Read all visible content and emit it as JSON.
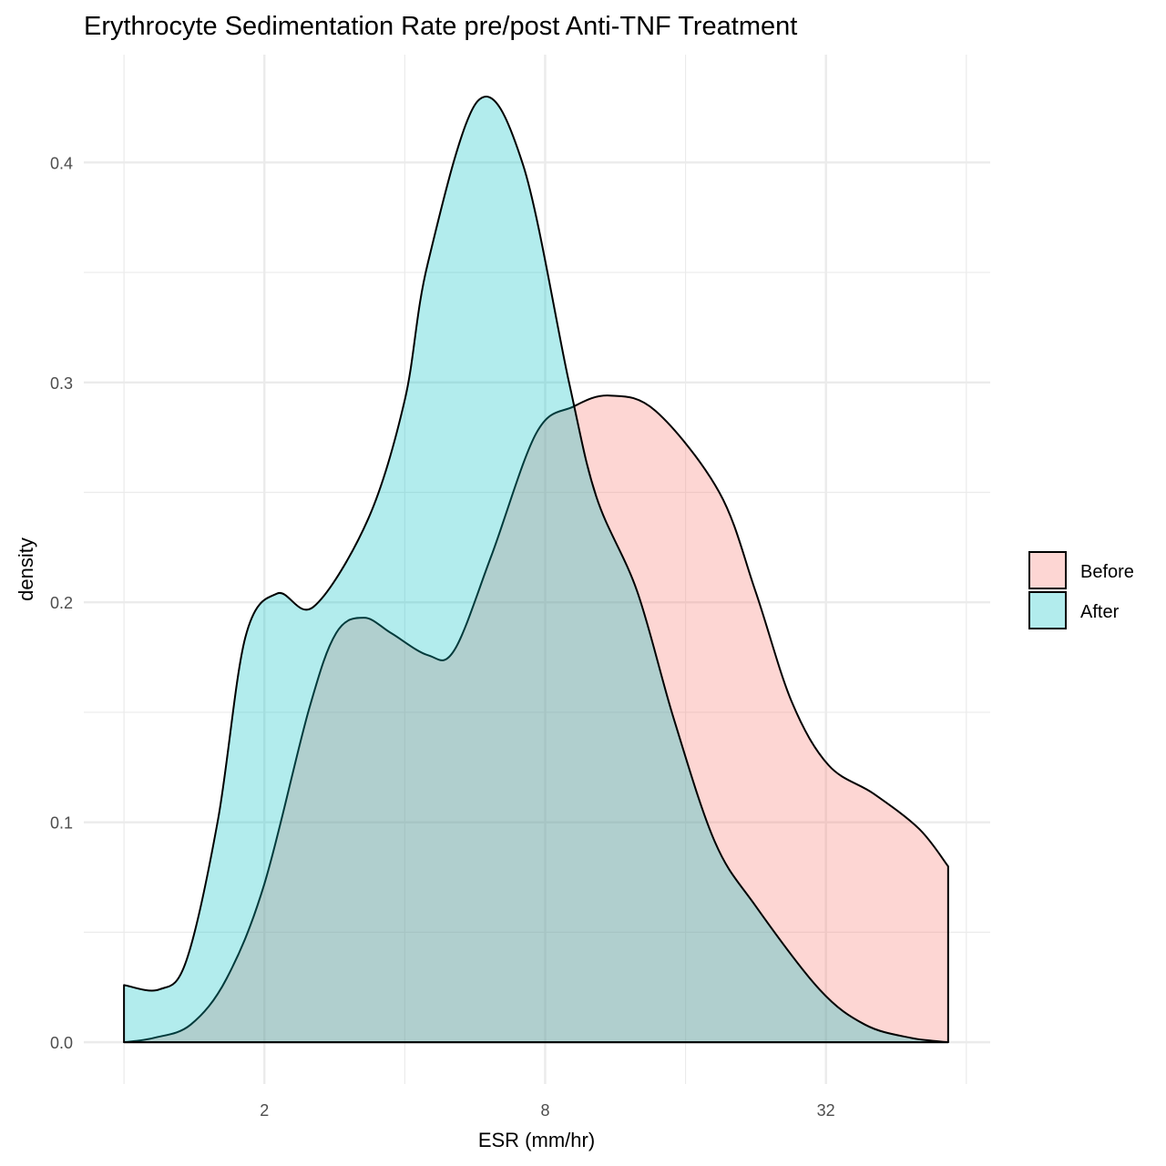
{
  "chart_data": {
    "type": "area",
    "subtype": "density",
    "title": "Erythrocyte Sedimentation Rate pre/post Anti-TNF Treatment",
    "xlabel": "ESR (mm/hr)",
    "ylabel": "density",
    "x_scale": "log2",
    "xlim": [
      0.82,
      72
    ],
    "ylim": [
      -0.019,
      0.449
    ],
    "x_ticks": [
      2,
      8,
      32
    ],
    "x_tick_labels": [
      "2",
      "8",
      "32"
    ],
    "y_ticks": [
      0.0,
      0.1,
      0.2,
      0.3,
      0.4
    ],
    "y_tick_labels": [
      "0.0",
      "0.1",
      "0.2",
      "0.3",
      "0.4"
    ],
    "grid": true,
    "legend_placement": "right",
    "series": [
      {
        "name": "Before",
        "color": "#F8766D",
        "alpha": 0.3,
        "x": [
          1,
          1.16,
          1.39,
          1.66,
          2,
          2.49,
          2.85,
          3.27,
          3.74,
          4.48,
          5.1,
          6.13,
          7.66,
          9.2,
          11,
          13.8,
          18.9,
          22.6,
          27,
          32.4,
          40.5,
          50.7,
          58.5
        ],
        "y": [
          0,
          0.002,
          0.008,
          0.029,
          0.072,
          0.151,
          0.186,
          0.193,
          0.186,
          0.176,
          0.178,
          0.221,
          0.277,
          0.289,
          0.294,
          0.287,
          0.25,
          0.205,
          0.155,
          0.126,
          0.113,
          0.097,
          0.08
        ]
      },
      {
        "name": "After",
        "color": "#00BFC4",
        "alpha": 0.3,
        "x": [
          1,
          1.19,
          1.36,
          1.59,
          1.82,
          2.13,
          2.55,
          3.34,
          4,
          4.48,
          5.74,
          7.17,
          9.0,
          10.3,
          12.6,
          15.1,
          18.5,
          22.6,
          31,
          38.8,
          48.6,
          58.5
        ],
        "y": [
          0.026,
          0.024,
          0.037,
          0.101,
          0.184,
          0.204,
          0.198,
          0.238,
          0.292,
          0.354,
          0.428,
          0.399,
          0.3,
          0.248,
          0.205,
          0.147,
          0.091,
          0.062,
          0.024,
          0.008,
          0.002,
          0
        ]
      }
    ]
  }
}
